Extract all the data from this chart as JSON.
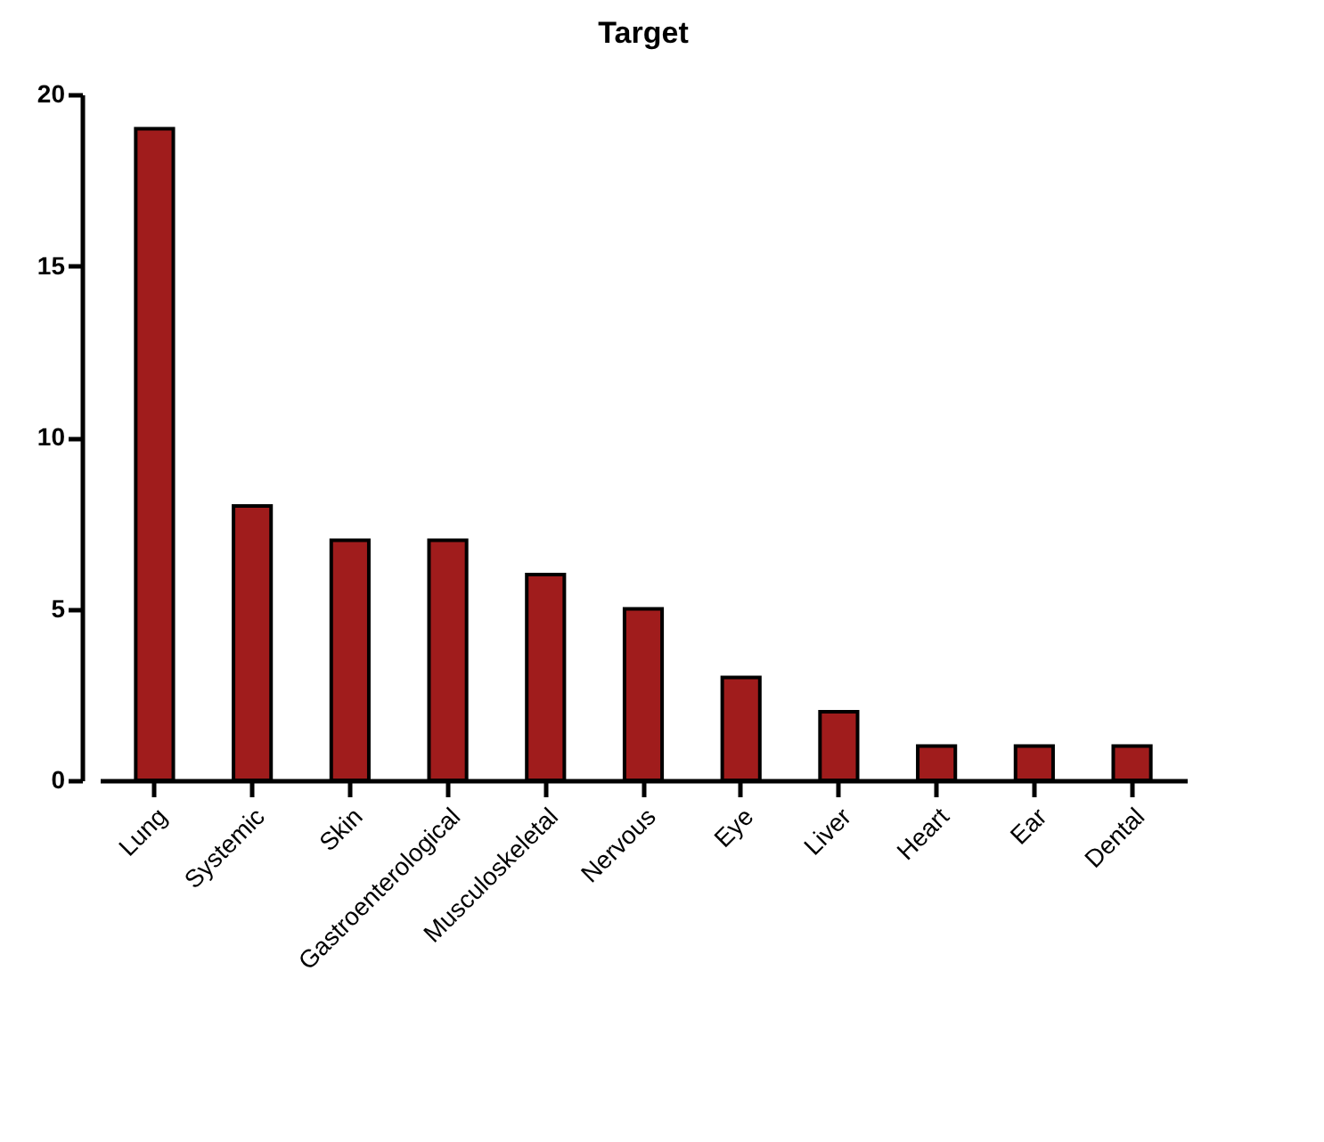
{
  "chart_data": {
    "type": "bar",
    "title": "Target",
    "categories": [
      "Lung",
      "Systemic",
      "Skin",
      "Gastroenterological",
      "Musculoskeletal",
      "Nervous",
      "Eye",
      "Liver",
      "Heart",
      "Ear",
      "Dental"
    ],
    "values": [
      19,
      8,
      7,
      7,
      6,
      5,
      3,
      2,
      1,
      1,
      1
    ],
    "color": "#a01c1c",
    "ylim": [
      0,
      20
    ],
    "yticks": [
      0,
      5,
      10,
      15,
      20
    ],
    "grid": false
  }
}
